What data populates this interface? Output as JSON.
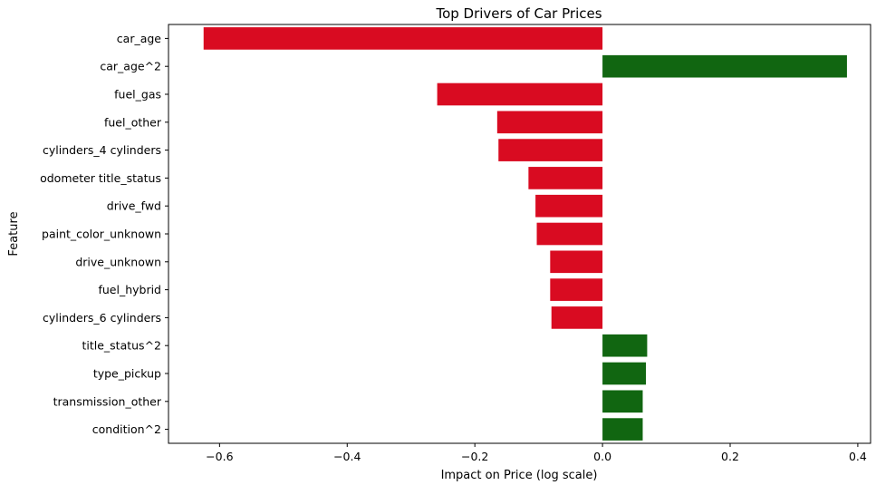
{
  "chart_data": {
    "type": "bar",
    "orientation": "horizontal",
    "title": "Top Drivers of Car Prices",
    "xlabel": "Impact on Price (log scale)",
    "ylabel": "Feature",
    "xlim": [
      -0.68,
      0.42
    ],
    "xticks": [
      -0.6,
      -0.4,
      -0.2,
      0.0,
      0.2,
      0.4
    ],
    "xtick_labels": [
      "−0.6",
      "−0.4",
      "−0.2",
      "0.0",
      "0.2",
      "0.4"
    ],
    "grid": false,
    "colors": {
      "negative": "#d90b21",
      "positive": "#116611"
    },
    "categories": [
      "car_age",
      "car_age^2",
      "fuel_gas",
      "fuel_other",
      "cylinders_4 cylinders",
      "odometer title_status",
      "drive_fwd",
      "paint_color_unknown",
      "drive_unknown",
      "fuel_hybrid",
      "cylinders_6 cylinders",
      "title_status^2",
      "type_pickup",
      "transmission_other",
      "condition^2"
    ],
    "values": [
      -0.625,
      0.383,
      -0.259,
      -0.165,
      -0.163,
      -0.116,
      -0.105,
      -0.103,
      -0.082,
      -0.082,
      -0.08,
      0.07,
      0.068,
      0.063,
      0.063
    ]
  }
}
